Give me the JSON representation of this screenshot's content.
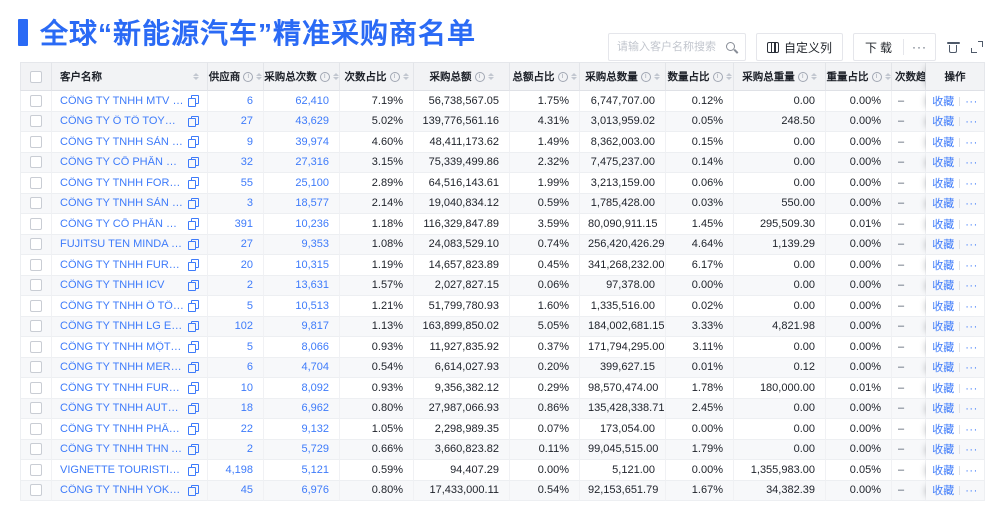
{
  "header": {
    "title": "全球“新能源汽车”精准采购商名单"
  },
  "toolbar": {
    "search_placeholder": "请输入客户名称搜索",
    "customize_columns": "自定义列",
    "download": "下载",
    "more": "···"
  },
  "icons": {
    "search": "magnifier",
    "customize_columns": "columns-grid",
    "delete": "trash",
    "fullscreen": "expand-corners",
    "copy": "copy-squares",
    "sort": "caret-up-down",
    "info": "circle-i"
  },
  "table": {
    "columns": {
      "name": "客户名称",
      "suppliers": "供应商",
      "total_times": "采购总次数",
      "times_pct": "次数占比",
      "total_amount": "采购总额",
      "amount_pct": "总额占比",
      "total_qty": "采购总数量",
      "qty_pct": "数量占比",
      "total_weight": "采购总重量",
      "weight_pct": "重量占比",
      "trend": "次数趋势",
      "actions": "操作"
    },
    "actions": {
      "favorite": "收藏",
      "more": "···"
    },
    "rows": [
      {
        "name": "CÔNG TY TNHH MTV SẢN XUẤ...",
        "suppliers": "6",
        "total_times": "62,410",
        "times_pct": "7.19%",
        "total_amount": "56,738,567.05",
        "amount_pct": "1.75%",
        "total_qty": "6,747,707.00",
        "qty_pct": "0.12%",
        "total_weight": "0.00",
        "weight_pct": "0.00%",
        "trend": "–"
      },
      {
        "name": "CÔNG TY Ô TÔ TOYOTA VIỆT ...",
        "suppliers": "27",
        "total_times": "43,629",
        "times_pct": "5.02%",
        "total_amount": "139,776,561.16",
        "amount_pct": "4.31%",
        "total_qty": "3,013,959.02",
        "qty_pct": "0.05%",
        "total_weight": "248.50",
        "weight_pct": "0.00%",
        "trend": "–"
      },
      {
        "name": "CÔNG TY TNHH SẢN XUẤT VÀ ...",
        "suppliers": "9",
        "total_times": "39,974",
        "times_pct": "4.60%",
        "total_amount": "48,411,173.62",
        "amount_pct": "1.49%",
        "total_qty": "8,362,003.00",
        "qty_pct": "0.15%",
        "total_weight": "0.00",
        "weight_pct": "0.00%",
        "trend": "–"
      },
      {
        "name": "CÔNG TY CỔ PHẦN SẢN XUẤT...",
        "suppliers": "32",
        "total_times": "27,316",
        "times_pct": "3.15%",
        "total_amount": "75,339,499.86",
        "amount_pct": "2.32%",
        "total_qty": "7,475,237.00",
        "qty_pct": "0.14%",
        "total_weight": "0.00",
        "weight_pct": "0.00%",
        "trend": "–"
      },
      {
        "name": "CÔNG TY TNHH FORD VIỆT NAM",
        "suppliers": "55",
        "total_times": "25,100",
        "times_pct": "2.89%",
        "total_amount": "64,516,143.61",
        "amount_pct": "1.99%",
        "total_qty": "3,213,159.00",
        "qty_pct": "0.06%",
        "total_weight": "0.00",
        "weight_pct": "0.00%",
        "trend": "–"
      },
      {
        "name": "CÔNG TY TNHH SẢN XUẤT VÀ ...",
        "suppliers": "3",
        "total_times": "18,577",
        "times_pct": "2.14%",
        "total_amount": "19,040,834.12",
        "amount_pct": "0.59%",
        "total_qty": "1,785,428.00",
        "qty_pct": "0.03%",
        "total_weight": "550.00",
        "weight_pct": "0.00%",
        "trend": "–"
      },
      {
        "name": "CÔNG TY CỔ PHẦN SẢN XUẤT...",
        "suppliers": "391",
        "total_times": "10,236",
        "times_pct": "1.18%",
        "total_amount": "116,329,847.89",
        "amount_pct": "3.59%",
        "total_qty": "80,090,911.15",
        "qty_pct": "1.45%",
        "total_weight": "295,509.30",
        "weight_pct": "0.01%",
        "trend": "–"
      },
      {
        "name": "FUJITSU TEN MINDA INDIA PVT...",
        "suppliers": "27",
        "total_times": "9,353",
        "times_pct": "1.08%",
        "total_amount": "24,083,529.10",
        "amount_pct": "0.74%",
        "total_qty": "256,420,426.29",
        "qty_pct": "4.64%",
        "total_weight": "1,139.29",
        "weight_pct": "0.00%",
        "trend": "–"
      },
      {
        "name": "CÔNG TY TNHH FURUKAWA A...",
        "suppliers": "20",
        "total_times": "10,315",
        "times_pct": "1.19%",
        "total_amount": "14,657,823.89",
        "amount_pct": "0.45%",
        "total_qty": "341,268,232.00",
        "qty_pct": "6.17%",
        "total_weight": "0.00",
        "weight_pct": "0.00%",
        "trend": "–"
      },
      {
        "name": "CÔNG TY TNHH ICV",
        "suppliers": "2",
        "total_times": "13,631",
        "times_pct": "1.57%",
        "total_amount": "2,027,827.15",
        "amount_pct": "0.06%",
        "total_qty": "97,378.00",
        "qty_pct": "0.00%",
        "total_weight": "0.00",
        "weight_pct": "0.00%",
        "trend": "–"
      },
      {
        "name": "CÔNG TY TNHH Ô TÔ MITSUBI...",
        "suppliers": "5",
        "total_times": "10,513",
        "times_pct": "1.21%",
        "total_amount": "51,799,780.93",
        "amount_pct": "1.60%",
        "total_qty": "1,335,516.00",
        "qty_pct": "0.02%",
        "total_weight": "0.00",
        "weight_pct": "0.00%",
        "trend": "–"
      },
      {
        "name": "CÔNG TY TNHH LG ELECTRON...",
        "suppliers": "102",
        "total_times": "9,817",
        "times_pct": "1.13%",
        "total_amount": "163,899,850.02",
        "amount_pct": "5.05%",
        "total_qty": "184,002,681.15",
        "qty_pct": "3.33%",
        "total_weight": "4,821.98",
        "weight_pct": "0.00%",
        "trend": "–"
      },
      {
        "name": "CÔNG TY TNHH MỘT THÀNH V...",
        "suppliers": "5",
        "total_times": "8,066",
        "times_pct": "0.93%",
        "total_amount": "11,927,835.92",
        "amount_pct": "0.37%",
        "total_qty": "171,794,295.00",
        "qty_pct": "3.11%",
        "total_weight": "0.00",
        "weight_pct": "0.00%",
        "trend": "–"
      },
      {
        "name": "CÔNG TY TNHH MERCEDES–B...",
        "suppliers": "6",
        "total_times": "4,704",
        "times_pct": "0.54%",
        "total_amount": "6,614,027.93",
        "amount_pct": "0.20%",
        "total_qty": "399,627.15",
        "qty_pct": "0.01%",
        "total_weight": "0.12",
        "weight_pct": "0.00%",
        "trend": "–"
      },
      {
        "name": "CÔNG TY TNHH FURUKAWA A...",
        "suppliers": "10",
        "total_times": "8,092",
        "times_pct": "0.93%",
        "total_amount": "9,356,382.12",
        "amount_pct": "0.29%",
        "total_qty": "98,570,474.00",
        "qty_pct": "1.78%",
        "total_weight": "180,000.00",
        "weight_pct": "0.01%",
        "trend": "–"
      },
      {
        "name": "CÔNG TY TNHH AUTEL VIỆT N...",
        "suppliers": "18",
        "total_times": "6,962",
        "times_pct": "0.80%",
        "total_amount": "27,987,066.93",
        "amount_pct": "0.86%",
        "total_qty": "135,428,338.71",
        "qty_pct": "2.45%",
        "total_weight": "0.00",
        "weight_pct": "0.00%",
        "trend": "–"
      },
      {
        "name": "CÔNG TY TNHH PHÂN PHỐI T...",
        "suppliers": "22",
        "total_times": "9,132",
        "times_pct": "1.05%",
        "total_amount": "2,298,989.35",
        "amount_pct": "0.07%",
        "total_qty": "173,054.00",
        "qty_pct": "0.00%",
        "total_weight": "0.00",
        "weight_pct": "0.00%",
        "trend": "–"
      },
      {
        "name": "CÔNG TY TNHH THN AUTOPAR...",
        "suppliers": "2",
        "total_times": "5,729",
        "times_pct": "0.66%",
        "total_amount": "3,660,823.82",
        "amount_pct": "0.11%",
        "total_qty": "99,045,515.00",
        "qty_pct": "1.79%",
        "total_weight": "0.00",
        "weight_pct": "0.00%",
        "trend": "–"
      },
      {
        "name": "VIGNETTE TOURISTIQUE G UNI...",
        "suppliers": "4,198",
        "total_times": "5,121",
        "times_pct": "0.59%",
        "total_amount": "94,407.29",
        "amount_pct": "0.00%",
        "total_qty": "5,121.00",
        "qty_pct": "0.00%",
        "total_weight": "1,355,983.00",
        "weight_pct": "0.05%",
        "trend": "–"
      },
      {
        "name": "CÔNG TY TNHH YOKOWO VIỆT...",
        "suppliers": "45",
        "total_times": "6,976",
        "times_pct": "0.80%",
        "total_amount": "17,433,000.11",
        "amount_pct": "0.54%",
        "total_qty": "92,153,651.79",
        "qty_pct": "1.67%",
        "total_weight": "34,382.39",
        "weight_pct": "0.00%",
        "trend": "–"
      }
    ]
  }
}
